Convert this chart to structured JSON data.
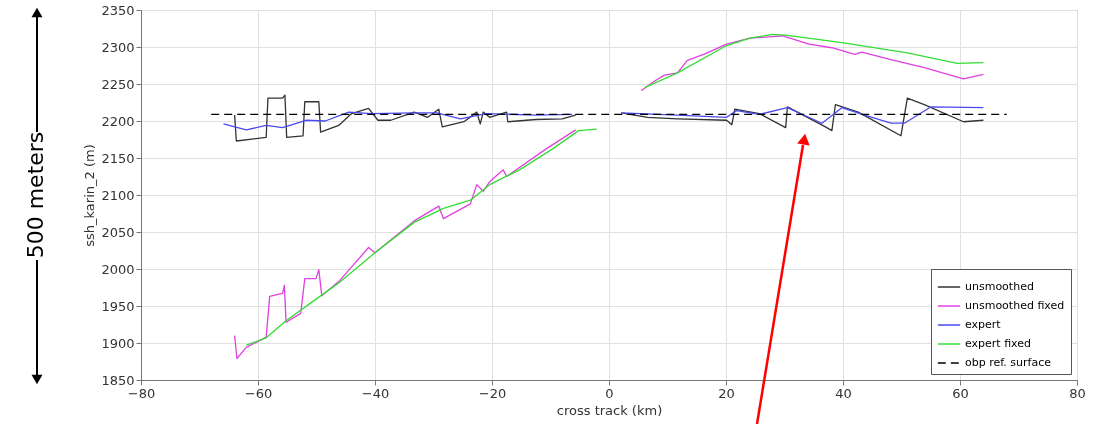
{
  "chart_data": {
    "type": "line",
    "xlabel": "cross track (km)",
    "ylabel": "ssh_karin_2 (m)",
    "xlim": [
      -80,
      80
    ],
    "xticks": [
      -80,
      -60,
      -40,
      -20,
      0,
      20,
      40,
      60,
      80
    ],
    "ylim": [
      1850,
      2350
    ],
    "yticks": [
      1850,
      1900,
      1950,
      2000,
      2050,
      2100,
      2150,
      2200,
      2250,
      2300,
      2350
    ],
    "grid": true,
    "legend": "bottom right",
    "marker": "none",
    "annotations": [
      "500 meters"
    ],
    "series": [
      {
        "name": "unsmoothed",
        "color": "#333333",
        "line_style": "solid",
        "x": [
          -64.0,
          -63.7,
          -58.6,
          -58.3,
          -55.8,
          -55.4,
          -55.1,
          -52.3,
          -52.0,
          -49.6,
          -49.3,
          -46.2,
          -44.0,
          -41.1,
          -39.5,
          -37.3,
          -33.3,
          -31.0,
          -29.1,
          -28.5,
          -24.8,
          -22.6,
          -22.0,
          -21.5,
          -20.4,
          -17.5,
          -17.3,
          -12.5,
          -8.0,
          -5.7,
          null,
          2.1,
          6.6,
          11.7,
          20.1,
          21.0,
          21.5,
          25.7,
          30.2,
          30.5,
          37.0,
          38.1,
          38.7,
          42.6,
          49.9,
          51.0,
          53.9,
          60.6,
          64.0
        ],
        "values": [
          2208,
          2173,
          2178,
          2231,
          2231,
          2235,
          2178,
          2180,
          2226,
          2226,
          2185,
          2194,
          2210,
          2217,
          2201,
          2201,
          2212,
          2205,
          2216,
          2192,
          2199,
          2212,
          2196,
          2212,
          2205,
          2212,
          2199,
          2202,
          2203,
          2208,
          null,
          2211,
          2205,
          2203,
          2201,
          2195,
          2216,
          2210,
          2191,
          2219,
          2192,
          2187,
          2222,
          2212,
          2180,
          2231,
          2222,
          2199,
          2201
        ]
      },
      {
        "name": "unsmoothed fixed",
        "color": "#e040e0",
        "line_style": "solid",
        "x": [
          -64.0,
          -63.6,
          -62.0,
          -58.6,
          -58.0,
          -55.8,
          -55.5,
          -55.2,
          -52.7,
          -52.0,
          -50.1,
          -49.6,
          -49.1,
          -46.2,
          -41.1,
          -40.0,
          -33.3,
          -29.1,
          -28.3,
          -23.7,
          -22.6,
          -21.5,
          -20.4,
          -18.1,
          -17.5,
          -10.8,
          -5.7,
          null,
          5.5,
          7.8,
          9.5,
          11.7,
          13.4,
          16.2,
          20.1,
          24.1,
          29.7,
          34.2,
          38.1,
          42.0,
          43.2,
          48.2,
          53.9,
          60.6,
          64.0
        ],
        "values": [
          1910,
          1879,
          1894,
          1908,
          1963,
          1967,
          1978,
          1928,
          1940,
          1987,
          1987,
          1999,
          1964,
          1983,
          2029,
          2022,
          2065,
          2085,
          2068,
          2088,
          2114,
          2105,
          2118,
          2134,
          2125,
          2162,
          2188,
          null,
          2241,
          2254,
          2262,
          2265,
          2282,
          2290,
          2304,
          2312,
          2315,
          2304,
          2299,
          2290,
          2293,
          2283,
          2272,
          2257,
          2263
        ]
      },
      {
        "name": "expert",
        "color": "#4a4af0",
        "line_style": "solid",
        "x": [
          -65.9,
          -62.0,
          -58.6,
          -55.8,
          -51.8,
          -48.5,
          -44.5,
          -40.6,
          -33.3,
          -29.4,
          -25.4,
          -21.0,
          -12.5,
          -6.3,
          null,
          2.1,
          11.7,
          20.1,
          21.8,
          25.7,
          30.5,
          36.4,
          39.8,
          43.7,
          48.2,
          50.5,
          55.0,
          64.0
        ],
        "values": [
          2196,
          2188,
          2194,
          2191,
          2201,
          2200,
          2212,
          2210,
          2211,
          2211,
          2203,
          2210,
          2208,
          2209,
          null,
          2211,
          2208,
          2205,
          2214,
          2209,
          2218,
          2197,
          2218,
          2208,
          2197,
          2197,
          2219,
          2218
        ]
      },
      {
        "name": "expert fixed",
        "color": "#33dd33",
        "line_style": "solid",
        "x": [
          -62.0,
          -58.6,
          -55.2,
          -49.6,
          -46.2,
          -40.0,
          -33.3,
          -28.3,
          -23.7,
          -20.4,
          -15.3,
          -9.7,
          -5.2,
          -2.1,
          null,
          6.1,
          11.7,
          20.1,
          24.1,
          28.0,
          30.2,
          39.8,
          51.0,
          59.5,
          64.0
        ],
        "values": [
          1897,
          1907,
          1930,
          1962,
          1981,
          2022,
          2063,
          2082,
          2093,
          2114,
          2134,
          2162,
          2187,
          2189,
          null,
          2245,
          2265,
          2302,
          2312,
          2317,
          2316,
          2306,
          2292,
          2278,
          2279
        ]
      },
      {
        "name": "obp ref. surface",
        "color": "#000000",
        "line_style": "dashed",
        "x": [
          -68,
          68
        ],
        "values": [
          2209,
          2209
        ]
      }
    ]
  }
}
